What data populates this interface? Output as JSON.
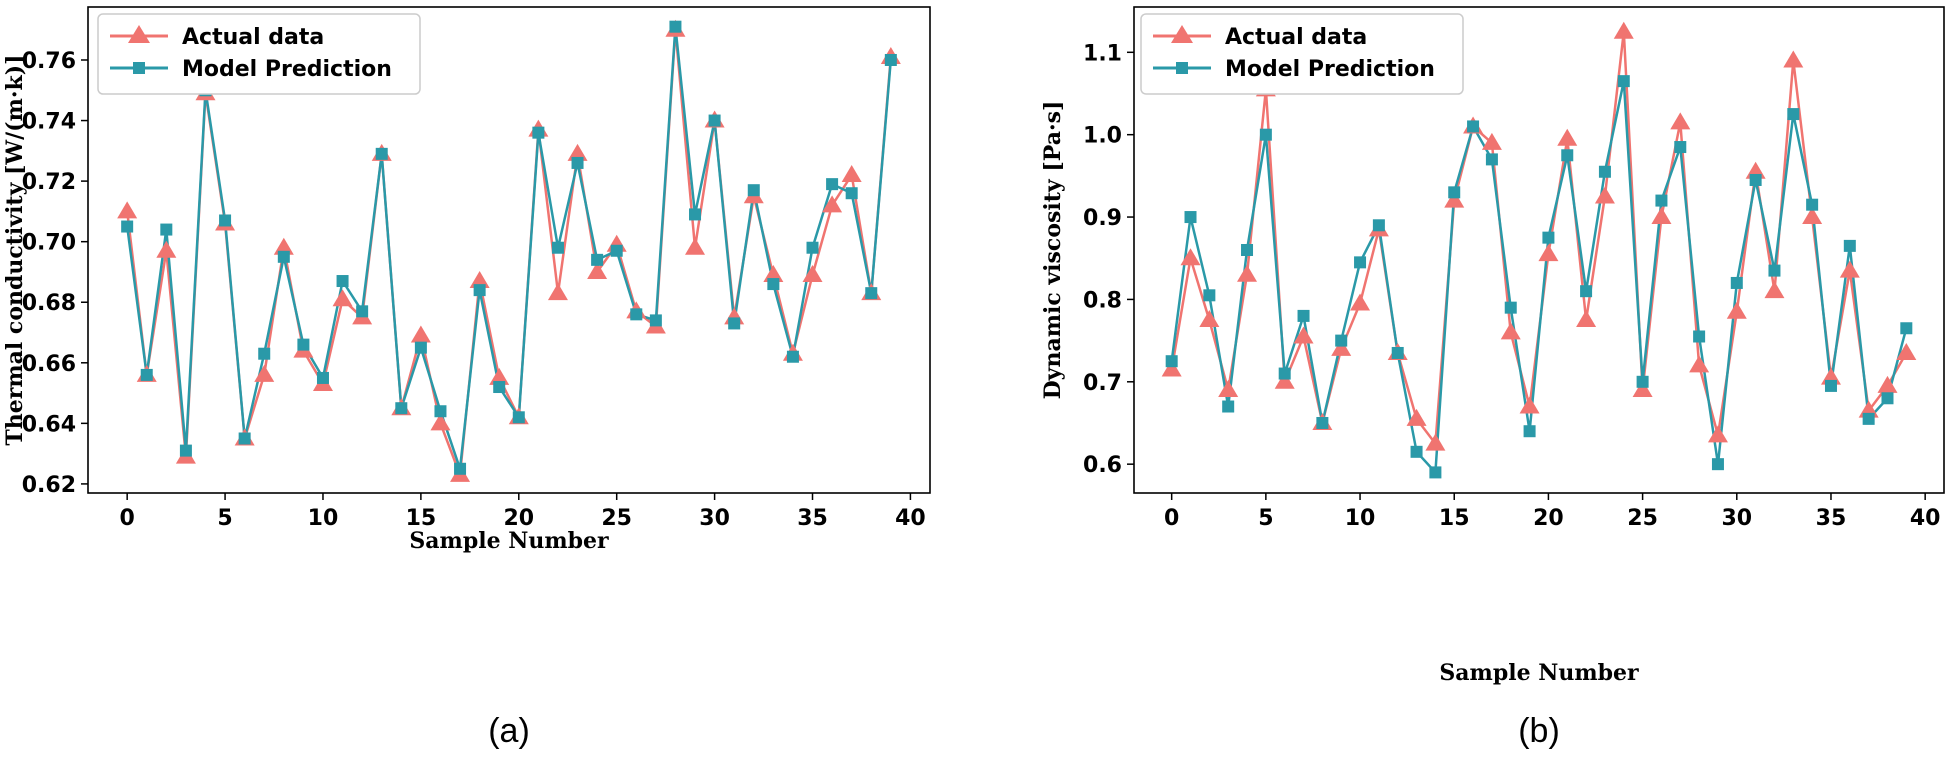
{
  "colors": {
    "actual": "#f07470",
    "predicted": "#2a99a8"
  },
  "chart_data": [
    {
      "type": "line",
      "caption": "(a)",
      "xlabel": "Sample Number",
      "ylabel": "Thermal conductivity [W/(m·k)]",
      "xlim": [
        -2,
        41
      ],
      "ylim": [
        0.617,
        0.7775
      ],
      "xticks": [
        0,
        5,
        10,
        15,
        20,
        25,
        30,
        35,
        40
      ],
      "yticks": [
        0.62,
        0.64,
        0.66,
        0.68,
        0.7,
        0.72,
        0.74,
        0.76
      ],
      "ytick_labels": [
        "0.62",
        "0.64",
        "0.66",
        "0.68",
        "0.70",
        "0.72",
        "0.74",
        "0.76"
      ],
      "legend": {
        "location": "top-left",
        "entries": [
          "Actual data",
          "Model Prediction"
        ]
      },
      "series": [
        {
          "name": "Actual data",
          "marker": "triangle",
          "values": [
            0.71,
            0.656,
            0.697,
            0.629,
            0.749,
            0.706,
            0.635,
            0.656,
            0.698,
            0.664,
            0.653,
            0.681,
            0.675,
            0.729,
            0.645,
            0.669,
            0.64,
            0.623,
            0.687,
            0.655,
            0.642,
            0.737,
            0.683,
            0.729,
            0.69,
            0.699,
            0.677,
            0.672,
            0.77,
            0.698,
            0.74,
            0.675,
            0.715,
            0.689,
            0.663,
            0.689,
            0.712,
            0.722,
            0.683,
            0.761
          ]
        },
        {
          "name": "Model Prediction",
          "marker": "square",
          "values": [
            0.705,
            0.656,
            0.704,
            0.631,
            0.75,
            0.707,
            0.635,
            0.663,
            0.695,
            0.666,
            0.655,
            0.687,
            0.677,
            0.729,
            0.645,
            0.665,
            0.644,
            0.625,
            0.684,
            0.652,
            0.642,
            0.736,
            0.698,
            0.726,
            0.694,
            0.697,
            0.676,
            0.674,
            0.771,
            0.709,
            0.74,
            0.673,
            0.717,
            0.686,
            0.662,
            0.698,
            0.719,
            0.716,
            0.683,
            0.76
          ]
        }
      ]
    },
    {
      "type": "line",
      "caption": "(b)",
      "xlabel": "Sample Number",
      "ylabel": "Dynamic viscosity [Pa·s]",
      "xlim": [
        -2,
        41
      ],
      "ylim": [
        0.565,
        1.155
      ],
      "xticks": [
        0,
        5,
        10,
        15,
        20,
        25,
        30,
        35,
        40
      ],
      "yticks": [
        0.6,
        0.7,
        0.8,
        0.9,
        1.0,
        1.1
      ],
      "ytick_labels": [
        "0.6",
        "0.7",
        "0.8",
        "0.9",
        "1.0",
        "1.1"
      ],
      "legend": {
        "location": "top-left",
        "entries": [
          "Actual data",
          "Model Prediction"
        ]
      },
      "series": [
        {
          "name": "Actual data",
          "marker": "triangle",
          "values": [
            0.715,
            0.85,
            0.775,
            0.69,
            0.83,
            1.055,
            0.7,
            0.755,
            0.65,
            0.74,
            0.795,
            0.885,
            0.735,
            0.655,
            0.625,
            0.92,
            1.01,
            0.99,
            0.76,
            0.67,
            0.855,
            0.995,
            0.775,
            0.925,
            1.125,
            0.69,
            0.9,
            1.015,
            0.72,
            0.635,
            0.785,
            0.955,
            0.81,
            1.09,
            0.9,
            0.705,
            0.835,
            0.665,
            0.695,
            0.735
          ]
        },
        {
          "name": "Model Prediction",
          "marker": "square",
          "values": [
            0.725,
            0.9,
            0.805,
            0.67,
            0.86,
            1.0,
            0.71,
            0.78,
            0.65,
            0.75,
            0.845,
            0.89,
            0.735,
            0.615,
            0.59,
            0.93,
            1.01,
            0.97,
            0.79,
            0.64,
            0.875,
            0.975,
            0.81,
            0.955,
            1.065,
            0.7,
            0.92,
            0.985,
            0.755,
            0.6,
            0.82,
            0.945,
            0.835,
            1.025,
            0.915,
            0.695,
            0.865,
            0.655,
            0.68,
            0.765
          ]
        }
      ]
    }
  ]
}
